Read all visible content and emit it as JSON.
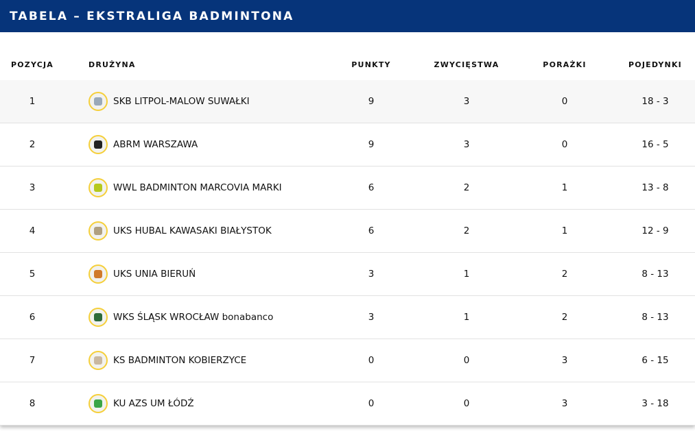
{
  "title": "TABELA – EKSTRALIGA BADMINTONA",
  "columns": [
    "POZYCJA",
    "DRUŻYNA",
    "PUNKTY",
    "ZWYCIĘSTWA",
    "PORAŻKI",
    "POJEDYNKI"
  ],
  "rows": [
    {
      "pos": "1",
      "team": "SKB LITPOL-MALOW SUWAŁKI",
      "pts": "9",
      "w": "3",
      "l": "0",
      "duels": "18 - 3",
      "logo_color": "#9aa9b8"
    },
    {
      "pos": "2",
      "team": "ABRM WARSZAWA",
      "pts": "9",
      "w": "3",
      "l": "0",
      "duels": "16 - 5",
      "logo_color": "#222222"
    },
    {
      "pos": "3",
      "team": "WWL BADMINTON MARCOVIA MARKI",
      "pts": "6",
      "w": "2",
      "l": "1",
      "duels": "13 - 8",
      "logo_color": "#b5c91e"
    },
    {
      "pos": "4",
      "team": "UKS HUBAL KAWASAKI BIAŁYSTOK",
      "pts": "6",
      "w": "2",
      "l": "1",
      "duels": "12 - 9",
      "logo_color": "#b0a080"
    },
    {
      "pos": "5",
      "team": "UKS UNIA BIERUŃ",
      "pts": "3",
      "w": "1",
      "l": "2",
      "duels": "8 - 13",
      "logo_color": "#d07a2a"
    },
    {
      "pos": "6",
      "team": "WKS ŚLĄSK WROCŁAW bonabanco",
      "pts": "3",
      "w": "1",
      "l": "2",
      "duels": "8 - 13",
      "logo_color": "#2e6b3a"
    },
    {
      "pos": "7",
      "team": "KS BADMINTON KOBIERZYCE",
      "pts": "0",
      "w": "0",
      "l": "3",
      "duels": "6 - 15",
      "logo_color": "#c9b8a0"
    },
    {
      "pos": "8",
      "team": "KU AZS UM ŁÓDŹ",
      "pts": "0",
      "w": "0",
      "l": "3",
      "duels": "3 - 18",
      "logo_color": "#3aa546"
    }
  ],
  "colors": {
    "header_bg": "#06347a",
    "logo_ring": "#f5cf3a",
    "first_row_bg": "#f7f7f7"
  }
}
